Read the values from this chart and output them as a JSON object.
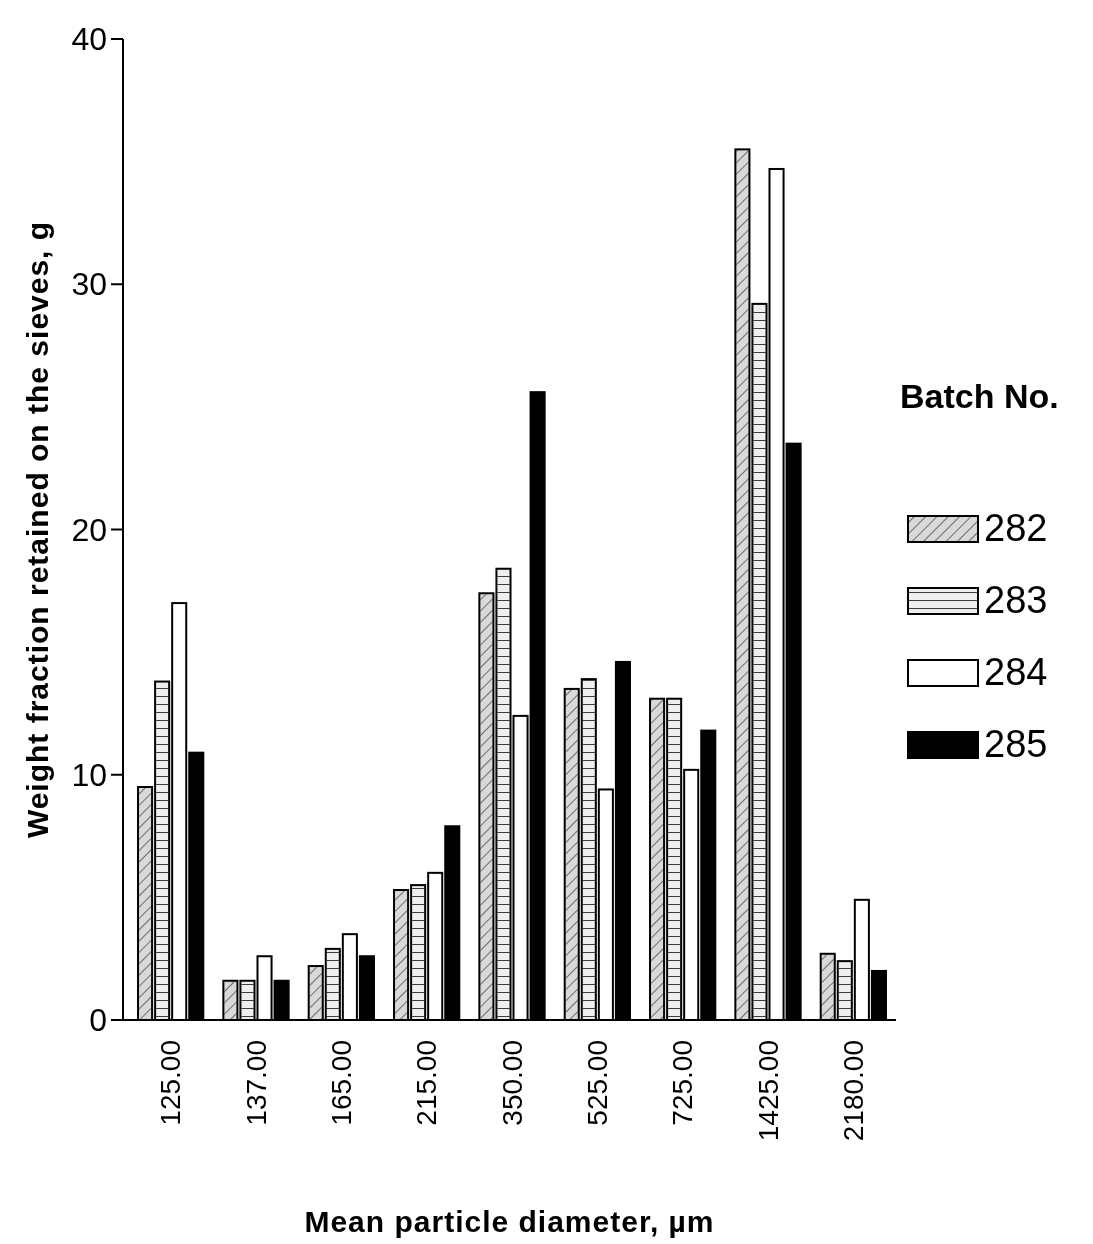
{
  "chart_data": {
    "type": "bar",
    "xlabel": "Mean particle diameter, µm",
    "ylabel": "Weight fraction retained on the sieves, g",
    "legend_title": "Batch No.",
    "legend": "right",
    "categories": [
      "125.00",
      "137.00",
      "165.00",
      "215.00",
      "350.00",
      "525.00",
      "725.00",
      "1425.00",
      "2180.00"
    ],
    "ylim": [
      0,
      40
    ],
    "yticks": [
      0,
      10,
      20,
      30,
      40
    ],
    "grid": false,
    "series": [
      {
        "name": "282",
        "color": "#d9d9d9",
        "values": [
          9.5,
          1.6,
          2.2,
          5.3,
          17.4,
          13.5,
          13.1,
          35.5,
          2.7
        ]
      },
      {
        "name": "283",
        "color": "#eeeeee",
        "values": [
          13.8,
          1.6,
          2.9,
          5.5,
          18.4,
          13.9,
          13.1,
          29.2,
          2.4
        ]
      },
      {
        "name": "284",
        "color": "#ffffff",
        "values": [
          17.0,
          2.6,
          3.5,
          6.0,
          12.4,
          9.4,
          10.2,
          34.7,
          4.9
        ]
      },
      {
        "name": "285",
        "color": "#000000",
        "values": [
          10.9,
          1.6,
          2.6,
          7.9,
          25.6,
          14.6,
          11.8,
          23.5,
          2.0
        ]
      }
    ]
  }
}
